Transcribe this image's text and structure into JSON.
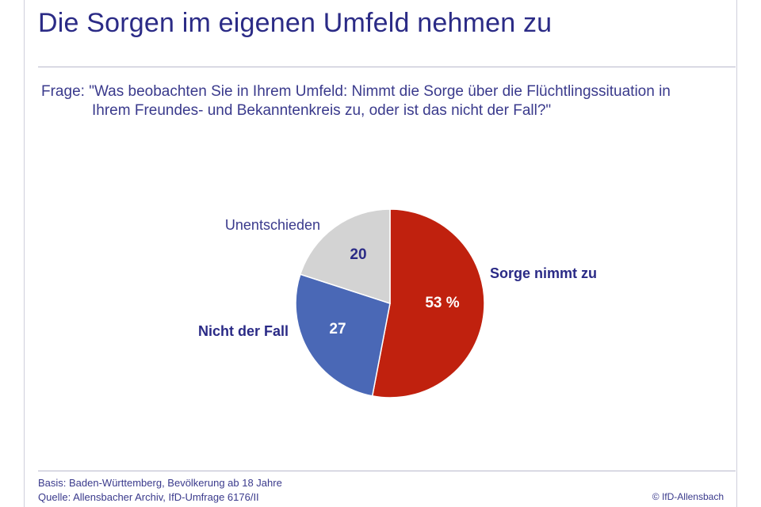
{
  "title": "Die Sorgen im eigenen Umfeld nehmen zu",
  "question": {
    "label": "Frage:",
    "line1": "\"Was beobachten Sie in Ihrem Umfeld: Nimmt die Sorge über die Flüchtlingssituation in",
    "line2": "Ihrem Freundes- und Bekanntenkreis zu, oder ist das nicht der Fall?\""
  },
  "chart_data": {
    "type": "pie",
    "slices": [
      {
        "label": "Sorge nimmt zu",
        "value": 53,
        "value_text": "53 %",
        "color": "#c0210e",
        "label_weight": "bold"
      },
      {
        "label": "Nicht der Fall",
        "value": 27,
        "value_text": "27",
        "color": "#4a68b6",
        "label_weight": "bold"
      },
      {
        "label": "Unentschieden",
        "value": 20,
        "value_text": "20",
        "color": "#d3d3d3",
        "label_weight": "normal"
      }
    ]
  },
  "footer": {
    "basis": "Basis: Baden-Württemberg, Bevölkerung ab 18 Jahre",
    "source": "Quelle: Allensbacher Archiv, IfD-Umfrage 6176/II",
    "copyright": "© IfD-Allensbach"
  }
}
